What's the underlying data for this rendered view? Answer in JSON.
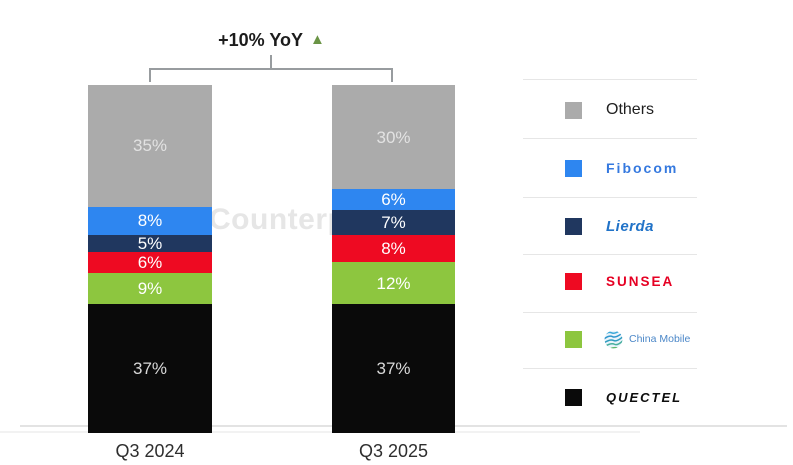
{
  "watermark": "Counterpoint",
  "annotation": {
    "label": "+10% YoY",
    "triangle_color": "#6a9445"
  },
  "chart_data": {
    "type": "bar",
    "stacked": true,
    "title": "",
    "categories": [
      "Q3 2024",
      "Q3 2025"
    ],
    "value_suffix": "%",
    "ylim": [
      0,
      100
    ],
    "grid": false,
    "legend_position": "right",
    "segments_order": "top-to-bottom",
    "series": [
      {
        "name": "Others",
        "color": "#ababab",
        "label_color": "#e2e2e2",
        "values": [
          35,
          30
        ]
      },
      {
        "name": "Fibocom",
        "color": "#2e86f0",
        "label_color": "#ffffff",
        "values": [
          8,
          6
        ]
      },
      {
        "name": "Lierda",
        "color": "#20375f",
        "label_color": "#ffffff",
        "values": [
          5,
          7
        ]
      },
      {
        "name": "Sunsea",
        "color": "#ee0a22",
        "label_color": "#ffffff",
        "values": [
          6,
          8
        ]
      },
      {
        "name": "China Mobile",
        "color": "#8dc63f",
        "label_color": "#ffffff",
        "values": [
          9,
          12
        ]
      },
      {
        "name": "Quectel",
        "color": "#0a0a0a",
        "label_color": "#d9d9d9",
        "values": [
          37,
          37
        ]
      }
    ],
    "annotation": "+10% YoY"
  },
  "legend": {
    "items": [
      {
        "id": "others",
        "label": "Others",
        "swatch": "#ababab",
        "text_color": "#1f1f1f"
      },
      {
        "id": "fibocom",
        "label": "Fibocom",
        "swatch": "#2e86f0",
        "text_color": "#3579df"
      },
      {
        "id": "lierda",
        "label": "Lierda",
        "swatch": "#20375f",
        "text_color": "#2173c8"
      },
      {
        "id": "sunsea",
        "label": "SUNSEA",
        "swatch": "#ee0a22",
        "text_color": "#e60023"
      },
      {
        "id": "china-mobile",
        "label": "China Mobile",
        "swatch": "#8dc63f",
        "text_color": "#4b87c8"
      },
      {
        "id": "quectel",
        "label": "QUECTEL",
        "swatch": "#0a0a0a",
        "text_color": "#0d0d0d"
      }
    ]
  }
}
